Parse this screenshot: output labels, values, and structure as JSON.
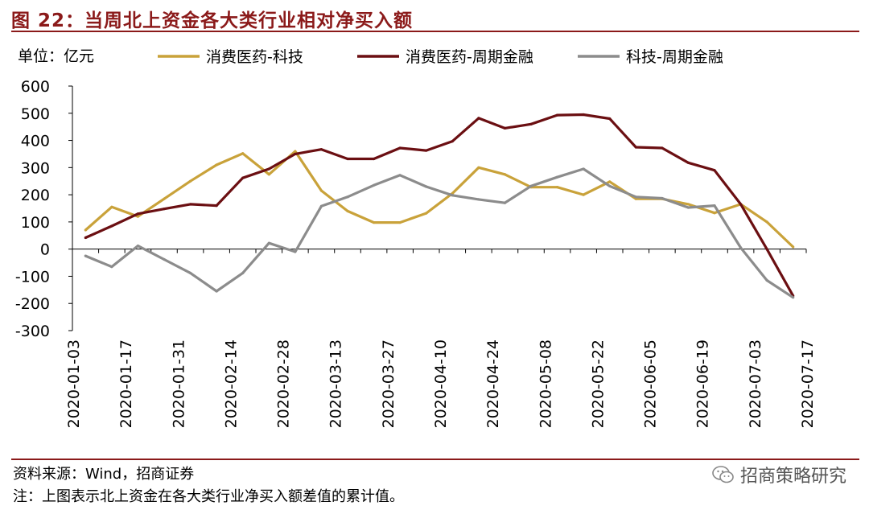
{
  "figure": {
    "title": "图 22：当周北上资金各大类行业相对净买入额",
    "unit_label": "单位：亿元",
    "source": "资料来源：Wind，招商证券",
    "note": "注：上图表示北上资金在各大类行业净买入额差值的累计值。",
    "watermark": "招商策略研究"
  },
  "colors": {
    "title": "#8B1A1A",
    "rule": "#8B1A1A",
    "series_1": "#C9A23A",
    "series_2": "#6B0F12",
    "series_3": "#8C8C8C"
  },
  "chart_data": {
    "type": "line",
    "title": "当周北上资金各大类行业相对净买入额",
    "ylabel": "单位：亿元",
    "ylim": [
      -300,
      600
    ],
    "yticks": [
      -300,
      -200,
      -100,
      0,
      100,
      200,
      300,
      400,
      500,
      600
    ],
    "xticks": [
      "2020-01-03",
      "2020-01-17",
      "2020-01-31",
      "2020-02-14",
      "2020-02-28",
      "2020-03-13",
      "2020-03-27",
      "2020-04-10",
      "2020-04-24",
      "2020-05-08",
      "2020-05-22",
      "2020-06-05",
      "2020-06-19",
      "2020-07-03",
      "2020-07-17"
    ],
    "x_count": 28,
    "legend_position": "top",
    "series": [
      {
        "name": "消费医药-科技",
        "color": "#C9A23A",
        "values": [
          70,
          155,
          120,
          185,
          250,
          310,
          352,
          275,
          360,
          215,
          140,
          98,
          98,
          132,
          205,
          300,
          275,
          228,
          228,
          200,
          248,
          185,
          185,
          165,
          133,
          165,
          100,
          8
        ]
      },
      {
        "name": "消费医药-周期金融",
        "color": "#6B0F12",
        "values": [
          42,
          85,
          130,
          148,
          165,
          160,
          262,
          295,
          350,
          367,
          332,
          332,
          372,
          363,
          397,
          482,
          445,
          460,
          493,
          495,
          480,
          375,
          372,
          318,
          290,
          165,
          0,
          -172
        ]
      },
      {
        "name": "科技-周期金融",
        "color": "#8C8C8C",
        "values": [
          -25,
          -65,
          12,
          -38,
          -88,
          -155,
          -88,
          22,
          -10,
          158,
          192,
          235,
          272,
          230,
          198,
          183,
          170,
          232,
          265,
          295,
          232,
          192,
          187,
          153,
          160,
          5,
          -115,
          -178
        ]
      }
    ]
  }
}
